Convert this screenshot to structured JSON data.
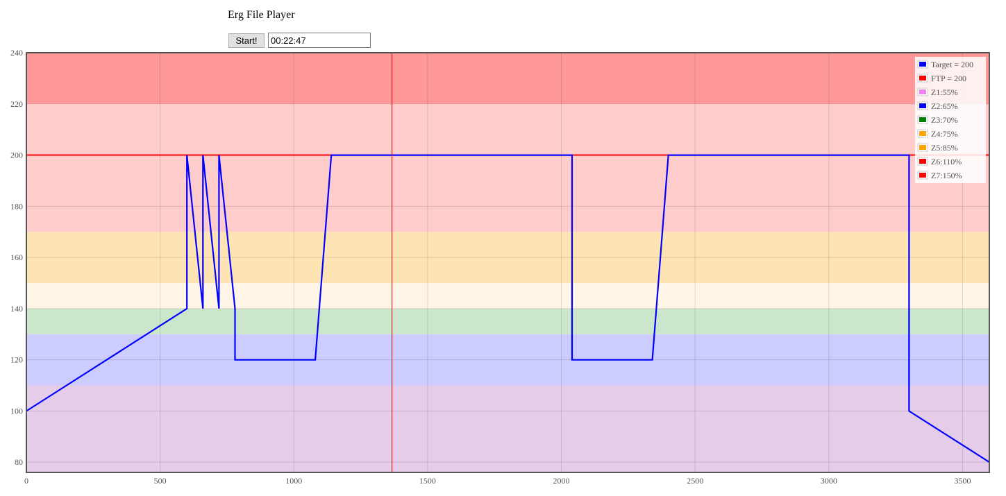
{
  "page": {
    "title": "Erg File Player",
    "start_label": "Start!",
    "timer_value": "00:22:47"
  },
  "chart_data": {
    "type": "line",
    "title": "",
    "xlabel": "",
    "ylabel": "",
    "xlim": [
      0,
      3600
    ],
    "ylim": [
      76,
      240
    ],
    "x_ticks": [
      0,
      500,
      1000,
      1500,
      2000,
      2500,
      3000,
      3500
    ],
    "y_ticks": [
      80,
      100,
      120,
      140,
      160,
      180,
      200,
      220,
      240
    ],
    "grid": true,
    "legend_position": "top-right",
    "zones": [
      {
        "from": 76,
        "to": 110,
        "color": "#e5cce8"
      },
      {
        "from": 110,
        "to": 130,
        "color": "#ccccff"
      },
      {
        "from": 130,
        "to": 140,
        "color": "#cce6cc"
      },
      {
        "from": 140,
        "to": 150,
        "color": "#fff5e6"
      },
      {
        "from": 150,
        "to": 170,
        "color": "#ffe4b3"
      },
      {
        "from": 170,
        "to": 220,
        "color": "#ffcccc"
      },
      {
        "from": 220,
        "to": 240,
        "color": "#ff9999"
      }
    ],
    "ftp_line": {
      "value": 200,
      "color": "#ff0000"
    },
    "cursor_x": 1367,
    "cursor_color": "#cc0000",
    "series": [
      {
        "name": "Target = 200",
        "color": "#0000ff",
        "x": [
          0,
          600,
          600,
          660,
          660,
          720,
          720,
          780,
          780,
          1080,
          1140,
          2040,
          2040,
          2340,
          2400,
          3300,
          3300,
          3600
        ],
        "y": [
          100,
          140,
          200,
          140,
          200,
          140,
          200,
          140,
          120,
          120,
          200,
          200,
          120,
          120,
          200,
          200,
          100,
          80
        ]
      }
    ],
    "legend": [
      {
        "label": "Target = 200",
        "color": "#0000ff"
      },
      {
        "label": "FTP = 200",
        "color": "#ff0000"
      },
      {
        "label": "Z1:55%",
        "color": "#ee82ee"
      },
      {
        "label": "Z2:65%",
        "color": "#0000ff"
      },
      {
        "label": "Z3:70%",
        "color": "#008000"
      },
      {
        "label": "Z4:75%",
        "color": "#ffa500"
      },
      {
        "label": "Z5:85%",
        "color": "#ffa500"
      },
      {
        "label": "Z6:110%",
        "color": "#ff0000"
      },
      {
        "label": "Z7:150%",
        "color": "#ff0000"
      }
    ]
  }
}
